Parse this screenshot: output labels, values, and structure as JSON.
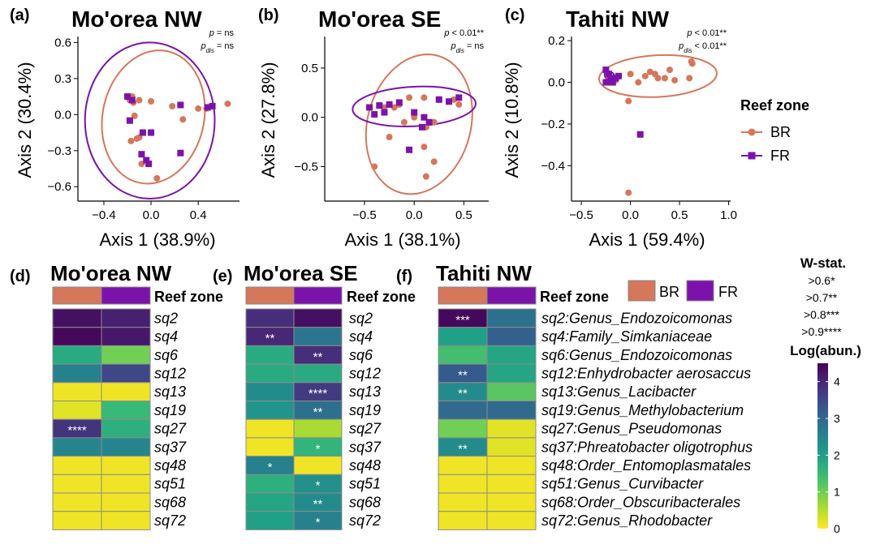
{
  "legend": {
    "title": "Reef zone",
    "items": [
      {
        "label": "BR",
        "color": "#d5775a"
      },
      {
        "label": "FR",
        "color": "#7b13ab"
      }
    ]
  },
  "wstat": {
    "title": "W-stat.",
    "levels": [
      ">0.6*",
      ">0.7**",
      ">0.8***",
      ">0.9****"
    ]
  },
  "colorbar": {
    "title": "Log(abun.)",
    "ticks": [
      "4",
      "3",
      "2",
      "1",
      "0"
    ]
  },
  "heat_legend": {
    "BR": "BR",
    "FR": "FR"
  },
  "reef_zone_label": "Reef zone",
  "chart_data": [
    {
      "type": "scatter",
      "panel": "(a)",
      "title": "Mo'orea NW",
      "xlabel": "Axis 1 (38.9%)",
      "ylabel": "Axis 2 (30.4%)",
      "xlim": [
        -0.62,
        0.75
      ],
      "ylim": [
        -0.72,
        0.65
      ],
      "xticks": [
        "−0.4",
        "0.0",
        "0.4"
      ],
      "xtickv": [
        -0.4,
        0.0,
        0.4
      ],
      "yticks": [
        "0.6",
        "0.3",
        "0.0",
        "−0.3",
        "−0.6"
      ],
      "ytickv": [
        0.6,
        0.3,
        0.0,
        -0.3,
        -0.6
      ],
      "stats": [
        {
          "p": "p",
          "sub": "",
          "val": "= ns"
        },
        {
          "p": "p",
          "sub": "dis",
          "val": "= ns"
        }
      ],
      "series": [
        {
          "name": "BR",
          "points": [
            [
              -0.16,
              0.15
            ],
            [
              -0.15,
              0.1
            ],
            [
              -0.18,
              0.12
            ],
            [
              -0.1,
              0.12
            ],
            [
              0.0,
              0.11
            ],
            [
              0.18,
              0.07
            ],
            [
              0.4,
              0.05
            ],
            [
              0.47,
              0.05
            ],
            [
              0.65,
              0.09
            ],
            [
              -0.14,
              -0.01
            ],
            [
              -0.1,
              -0.19
            ],
            [
              -0.12,
              -0.2
            ],
            [
              -0.17,
              -0.22
            ],
            [
              0.27,
              -0.04
            ],
            [
              -0.08,
              -0.41
            ],
            [
              0.05,
              -0.53
            ]
          ]
        },
        {
          "name": "FR",
          "points": [
            [
              -0.16,
              0.12
            ],
            [
              -0.2,
              0.15
            ],
            [
              0.25,
              0.08
            ],
            [
              0.52,
              0.07
            ],
            [
              0.48,
              0.06
            ],
            [
              -0.18,
              -0.05
            ],
            [
              -0.07,
              -0.15
            ],
            [
              0.0,
              -0.15
            ],
            [
              -0.08,
              -0.33
            ],
            [
              -0.04,
              -0.38
            ],
            [
              -0.02,
              -0.41
            ],
            [
              0.25,
              -0.32
            ]
          ]
        }
      ],
      "ellipses": [
        {
          "name": "BR",
          "cx": 0.02,
          "cy": -0.02,
          "rx": 0.43,
          "ry": 0.56,
          "rot": 12
        },
        {
          "name": "FR",
          "cx": -0.01,
          "cy": -0.05,
          "rx": 0.55,
          "ry": 0.65,
          "rot": 0
        }
      ]
    },
    {
      "type": "scatter",
      "panel": "(b)",
      "title": "Mo'orea SE",
      "xlabel": "Axis 1 (38.1%)",
      "ylabel": "Axis 2 (27.8%)",
      "xlim": [
        -0.9,
        0.75
      ],
      "ylim": [
        -0.85,
        0.82
      ],
      "xticks": [
        "−0.5",
        "0.0",
        "0.5"
      ],
      "xtickv": [
        -0.5,
        0.0,
        0.5
      ],
      "yticks": [
        "0.5",
        "0.0",
        "−0.5"
      ],
      "ytickv": [
        0.5,
        0.0,
        -0.5
      ],
      "stats": [
        {
          "p": "p",
          "sub": "",
          "val": "< 0.01**"
        },
        {
          "p": "p",
          "sub": "dis",
          "val": "= ns"
        }
      ],
      "series": [
        {
          "name": "BR",
          "points": [
            [
              -0.05,
              0.2
            ],
            [
              0.1,
              0.2
            ],
            [
              0.25,
              0.18
            ],
            [
              0.4,
              0.18
            ],
            [
              0.45,
              0.13
            ],
            [
              -0.15,
              0.13
            ],
            [
              -0.2,
              0.1
            ],
            [
              -0.3,
              0.1
            ],
            [
              0.0,
              0.0
            ],
            [
              -0.1,
              -0.05
            ],
            [
              0.2,
              -0.05
            ],
            [
              0.12,
              -0.1
            ],
            [
              -0.25,
              -0.2
            ],
            [
              0.1,
              -0.3
            ],
            [
              -0.4,
              -0.5
            ],
            [
              0.2,
              -0.45
            ],
            [
              0.12,
              -0.6
            ]
          ]
        },
        {
          "name": "FR",
          "points": [
            [
              -0.45,
              0.1
            ],
            [
              -0.35,
              0.12
            ],
            [
              -0.25,
              0.13
            ],
            [
              -0.15,
              0.15
            ],
            [
              -0.4,
              0.03
            ],
            [
              -0.3,
              0.05
            ],
            [
              0.0,
              0.05
            ],
            [
              0.1,
              0.0
            ],
            [
              0.25,
              0.18
            ],
            [
              0.35,
              0.16
            ],
            [
              0.45,
              0.2
            ],
            [
              0.15,
              -0.05
            ],
            [
              0.08,
              -0.1
            ],
            [
              -0.05,
              -0.33
            ]
          ]
        }
      ],
      "ellipses": [
        {
          "name": "BR",
          "cx": 0.05,
          "cy": -0.07,
          "rx": 0.52,
          "ry": 0.72,
          "rot": 15
        },
        {
          "name": "FR",
          "cx": 0.0,
          "cy": 0.11,
          "rx": 0.62,
          "ry": 0.2,
          "rot": -3
        }
      ]
    },
    {
      "type": "scatter",
      "panel": "(c)",
      "title": "Tahiti NW",
      "xlabel": "Axis 1 (59.4%)",
      "ylabel": "Axis 2 (10.8%)",
      "xlim": [
        -0.6,
        1.02
      ],
      "ylim": [
        -0.57,
        0.22
      ],
      "xticks": [
        "−0.5",
        "0.0",
        "0.5",
        "1.0"
      ],
      "xtickv": [
        -0.5,
        0.0,
        0.5,
        1.0
      ],
      "yticks": [
        "0.2",
        "0.0",
        "−0.2",
        "−0.4"
      ],
      "ytickv": [
        0.2,
        0.0,
        -0.2,
        -0.4
      ],
      "stats": [
        {
          "p": "p",
          "sub": "",
          "val": "< 0.01**"
        },
        {
          "p": "p",
          "sub": "dis",
          "val": "< 0.01**"
        }
      ],
      "series": [
        {
          "name": "BR",
          "points": [
            [
              -0.22,
              0.03
            ],
            [
              -0.18,
              0.02
            ],
            [
              0.0,
              0.04
            ],
            [
              0.15,
              0.03
            ],
            [
              0.2,
              0.05
            ],
            [
              0.25,
              0.04
            ],
            [
              0.35,
              0.02
            ],
            [
              0.4,
              0.06
            ],
            [
              0.45,
              0.01
            ],
            [
              0.6,
              0.02
            ],
            [
              0.62,
              0.1
            ],
            [
              0.63,
              0.09
            ],
            [
              0.28,
              0.02
            ],
            [
              -0.02,
              -0.09
            ],
            [
              0.08,
              0.0
            ],
            [
              -0.15,
              0.01
            ],
            [
              -0.02,
              -0.53
            ]
          ]
        },
        {
          "name": "FR",
          "points": [
            [
              -0.25,
              0.06
            ],
            [
              -0.22,
              0.04
            ],
            [
              -0.2,
              0.02
            ],
            [
              -0.2,
              0.01
            ],
            [
              -0.18,
              0.0
            ],
            [
              -0.15,
              0.02
            ],
            [
              -0.25,
              0.0
            ],
            [
              -0.22,
              0.0
            ],
            [
              -0.12,
              0.03
            ],
            [
              0.1,
              -0.25
            ]
          ]
        }
      ],
      "ellipses": [
        {
          "name": "BR",
          "cx": 0.28,
          "cy": 0.03,
          "rx": 0.6,
          "ry": 0.1,
          "rot": -3
        },
        {
          "name": "FR",
          "cx": -0.21,
          "cy": 0.03,
          "rx": 0.06,
          "ry": 0.02,
          "rot": 40
        }
      ]
    },
    {
      "type": "heatmap",
      "panel": "(d)",
      "title": "Mo'orea NW",
      "columns": [
        "BR",
        "FR"
      ],
      "rows": [
        "sq2",
        "sq4",
        "sq6",
        "sq12",
        "sq13",
        "sq19",
        "sq27",
        "sq37",
        "sq48",
        "sq51",
        "sq68",
        "sq72"
      ],
      "values": [
        [
          4.4,
          4.2
        ],
        [
          4.5,
          4.3
        ],
        [
          1.8,
          1.0
        ],
        [
          2.6,
          3.6
        ],
        [
          0.1,
          0.1
        ],
        [
          0.2,
          1.5
        ],
        [
          3.9,
          1.7
        ],
        [
          2.5,
          2.5
        ],
        [
          0.1,
          0.1
        ],
        [
          0.1,
          0.1
        ],
        [
          0.1,
          0.1
        ],
        [
          0.1,
          0.1
        ]
      ],
      "stars": [
        [
          "",
          ""
        ],
        [
          "",
          ""
        ],
        [
          "",
          ""
        ],
        [
          "",
          ""
        ],
        [
          "",
          ""
        ],
        [
          "",
          ""
        ],
        [
          "****",
          ""
        ],
        [
          "",
          ""
        ],
        [
          "",
          ""
        ],
        [
          "",
          ""
        ],
        [
          "",
          ""
        ],
        [
          "",
          ""
        ]
      ]
    },
    {
      "type": "heatmap",
      "panel": "(e)",
      "title": "Mo'orea SE",
      "columns": [
        "BR",
        "FR"
      ],
      "rows": [
        "sq2",
        "sq4",
        "sq6",
        "sq12",
        "sq13",
        "sq19",
        "sq27",
        "sq37",
        "sq48",
        "sq51",
        "sq68",
        "sq72"
      ],
      "values": [
        [
          4.0,
          4.4
        ],
        [
          4.1,
          2.8
        ],
        [
          1.8,
          4.0
        ],
        [
          1.8,
          1.8
        ],
        [
          2.4,
          3.8
        ],
        [
          2.2,
          2.9
        ],
        [
          0.1,
          0.6
        ],
        [
          0.1,
          1.6
        ],
        [
          2.6,
          0.1
        ],
        [
          1.7,
          2.3
        ],
        [
          1.9,
          2.4
        ],
        [
          2.0,
          2.6
        ]
      ],
      "stars": [
        [
          "",
          ""
        ],
        [
          "**",
          ""
        ],
        [
          "",
          "**"
        ],
        [
          "",
          ""
        ],
        [
          "",
          "****"
        ],
        [
          "",
          "**"
        ],
        [
          "",
          ""
        ],
        [
          "",
          "*"
        ],
        [
          "*",
          ""
        ],
        [
          "",
          "*"
        ],
        [
          "",
          "**"
        ],
        [
          "",
          "*"
        ]
      ]
    },
    {
      "type": "heatmap",
      "panel": "(f)",
      "title": "Tahiti NW",
      "columns": [
        "BR",
        "FR"
      ],
      "rows": [
        "sq2:Genus_Endozoicomonas",
        "sq4:Family_Simkaniaceae",
        "sq6:Genus_Endozoicomonas",
        "sq12:Enhydrobacter aerosaccus",
        "sq13:Genus_Lacibacter",
        "sq19:Genus_Methylobacterium",
        "sq27:Genus_Pseudomonas",
        "sq37:Phreatobacter oligotrophus",
        "sq48:Order_Entomoplasmatales",
        "sq51:Genus_Curvibacter",
        "sq68:Order_Obscuribacterales",
        "sq72:Genus_Rhodobacter"
      ],
      "values": [
        [
          4.5,
          2.9
        ],
        [
          2.0,
          3.2
        ],
        [
          1.4,
          1.9
        ],
        [
          3.3,
          1.9
        ],
        [
          2.4,
          1.2
        ],
        [
          3.0,
          3.0
        ],
        [
          1.0,
          0.2
        ],
        [
          2.4,
          0.2
        ],
        [
          0.1,
          0.1
        ],
        [
          0.1,
          0.1
        ],
        [
          0.1,
          0.1
        ],
        [
          0.1,
          0.1
        ]
      ],
      "stars": [
        [
          "***",
          ""
        ],
        [
          "",
          ""
        ],
        [
          "",
          ""
        ],
        [
          "**",
          ""
        ],
        [
          "**",
          ""
        ],
        [
          "",
          ""
        ],
        [
          "",
          ""
        ],
        [
          "**",
          ""
        ],
        [
          "",
          ""
        ],
        [
          "",
          ""
        ],
        [
          "",
          ""
        ],
        [
          "",
          ""
        ]
      ]
    }
  ]
}
